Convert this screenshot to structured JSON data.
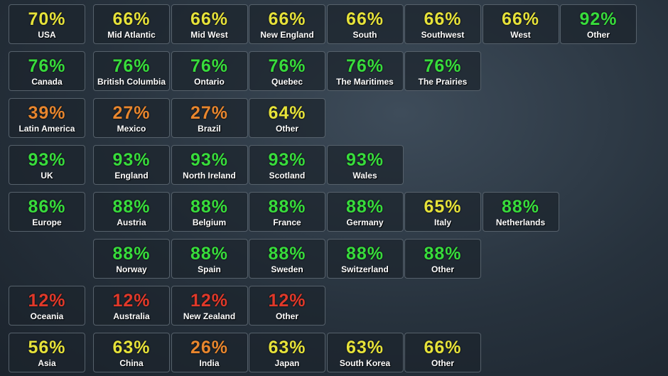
{
  "groups": [
    {
      "tile": {
        "value": "70%",
        "label": "USA",
        "color": "#e6e23a"
      },
      "rows": [
        [
          {
            "value": "66%",
            "label": "Mid Atlantic",
            "color": "#e6e23a"
          },
          {
            "value": "66%",
            "label": "Mid West",
            "color": "#e6e23a"
          },
          {
            "value": "66%",
            "label": "New England",
            "color": "#e6e23a"
          },
          {
            "value": "66%",
            "label": "South",
            "color": "#e6e23a"
          },
          {
            "value": "66%",
            "label": "Southwest",
            "color": "#e6e23a"
          },
          {
            "value": "66%",
            "label": "West",
            "color": "#e6e23a"
          },
          {
            "value": "92%",
            "label": "Other",
            "color": "#38dc3c"
          }
        ]
      ]
    },
    {
      "tile": {
        "value": "76%",
        "label": "Canada",
        "color": "#38dc3c"
      },
      "rows": [
        [
          {
            "value": "76%",
            "label": "British Columbia",
            "color": "#38dc3c"
          },
          {
            "value": "76%",
            "label": "Ontario",
            "color": "#38dc3c"
          },
          {
            "value": "76%",
            "label": "Quebec",
            "color": "#38dc3c"
          },
          {
            "value": "76%",
            "label": "The Maritimes",
            "color": "#38dc3c"
          },
          {
            "value": "76%",
            "label": "The Prairies",
            "color": "#38dc3c"
          }
        ]
      ]
    },
    {
      "tile": {
        "value": "39%",
        "label": "Latin America",
        "color": "#e8862e"
      },
      "rows": [
        [
          {
            "value": "27%",
            "label": "Mexico",
            "color": "#e8862e"
          },
          {
            "value": "27%",
            "label": "Brazil",
            "color": "#e8862e"
          },
          {
            "value": "64%",
            "label": "Other",
            "color": "#e6e23a"
          }
        ]
      ]
    },
    {
      "tile": {
        "value": "93%",
        "label": "UK",
        "color": "#38dc3c"
      },
      "rows": [
        [
          {
            "value": "93%",
            "label": "England",
            "color": "#38dc3c"
          },
          {
            "value": "93%",
            "label": "North Ireland",
            "color": "#38dc3c"
          },
          {
            "value": "93%",
            "label": "Scotland",
            "color": "#38dc3c"
          },
          {
            "value": "93%",
            "label": "Wales",
            "color": "#38dc3c"
          }
        ]
      ]
    },
    {
      "tile": {
        "value": "86%",
        "label": "Europe",
        "color": "#38dc3c"
      },
      "rows": [
        [
          {
            "value": "88%",
            "label": "Austria",
            "color": "#38dc3c"
          },
          {
            "value": "88%",
            "label": "Belgium",
            "color": "#38dc3c"
          },
          {
            "value": "88%",
            "label": "France",
            "color": "#38dc3c"
          },
          {
            "value": "88%",
            "label": "Germany",
            "color": "#38dc3c"
          },
          {
            "value": "65%",
            "label": "Italy",
            "color": "#e6e23a"
          },
          {
            "value": "88%",
            "label": "Netherlands",
            "color": "#38dc3c"
          }
        ],
        [
          {
            "value": "88%",
            "label": "Norway",
            "color": "#38dc3c"
          },
          {
            "value": "88%",
            "label": "Spain",
            "color": "#38dc3c"
          },
          {
            "value": "88%",
            "label": "Sweden",
            "color": "#38dc3c"
          },
          {
            "value": "88%",
            "label": "Switzerland",
            "color": "#38dc3c"
          },
          {
            "value": "88%",
            "label": "Other",
            "color": "#38dc3c"
          }
        ]
      ]
    },
    {
      "tile": {
        "value": "12%",
        "label": "Oceania",
        "color": "#e0392a"
      },
      "rows": [
        [
          {
            "value": "12%",
            "label": "Australia",
            "color": "#e0392a"
          },
          {
            "value": "12%",
            "label": "New Zealand",
            "color": "#e0392a"
          },
          {
            "value": "12%",
            "label": "Other",
            "color": "#e0392a"
          }
        ]
      ]
    },
    {
      "tile": {
        "value": "56%",
        "label": "Asia",
        "color": "#e6e23a"
      },
      "rows": [
        [
          {
            "value": "63%",
            "label": "China",
            "color": "#e6e23a"
          },
          {
            "value": "26%",
            "label": "India",
            "color": "#e8862e"
          },
          {
            "value": "63%",
            "label": "Japan",
            "color": "#e6e23a"
          },
          {
            "value": "63%",
            "label": "South Korea",
            "color": "#e6e23a"
          },
          {
            "value": "66%",
            "label": "Other",
            "color": "#e6e23a"
          }
        ]
      ]
    }
  ]
}
